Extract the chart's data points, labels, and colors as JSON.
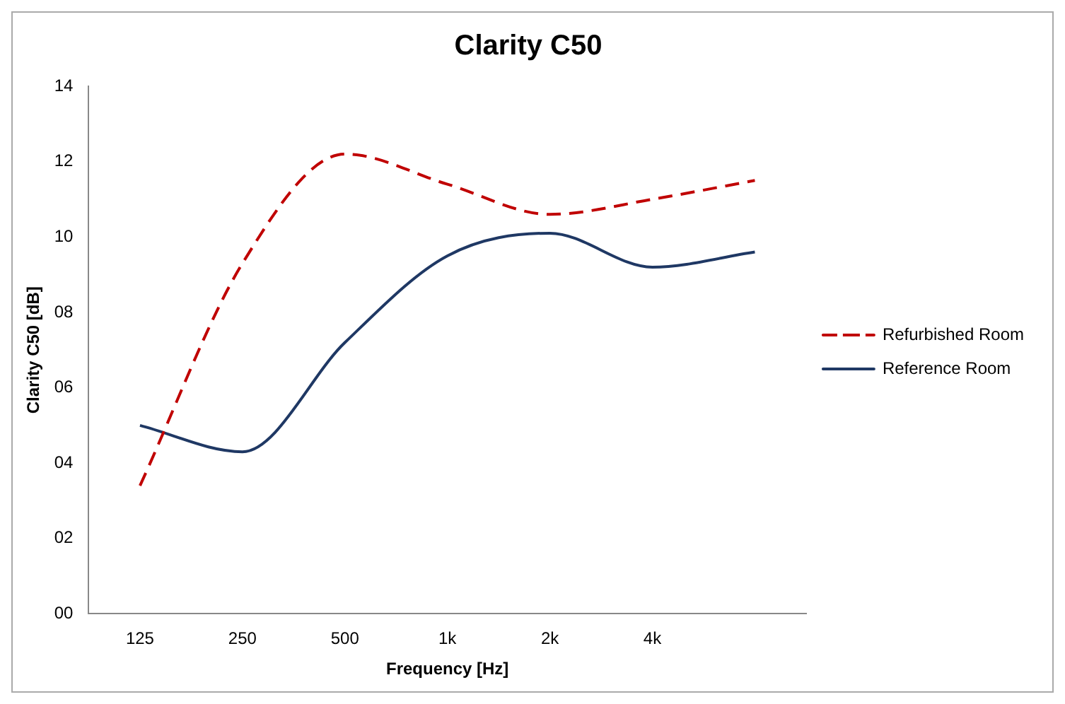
{
  "chart_data": {
    "type": "line",
    "title": "Clarity C50",
    "xlabel": "Frequency [Hz]",
    "ylabel": "Clarity C50 [dB]",
    "categories": [
      "125",
      "250",
      "500",
      "1k",
      "2k",
      "4k",
      null
    ],
    "series": [
      {
        "name": "Refurbished Room",
        "color": "#c00000",
        "line_style": "dashed",
        "values": [
          3.4,
          9.3,
          12.2,
          11.4,
          10.6,
          11.0,
          11.5
        ]
      },
      {
        "name": "Reference Room",
        "color": "#1f3864",
        "line_style": "solid",
        "values": [
          5.0,
          4.3,
          7.2,
          9.5,
          10.1,
          9.2,
          9.6
        ]
      }
    ],
    "ylim": [
      0,
      14
    ],
    "yticks": [
      {
        "value": 0,
        "label": "00"
      },
      {
        "value": 2,
        "label": "02"
      },
      {
        "value": 4,
        "label": "04"
      },
      {
        "value": 6,
        "label": "06"
      },
      {
        "value": 8,
        "label": "08"
      },
      10,
      12,
      14
    ],
    "grid": false,
    "legend": "right",
    "marker": "none"
  }
}
